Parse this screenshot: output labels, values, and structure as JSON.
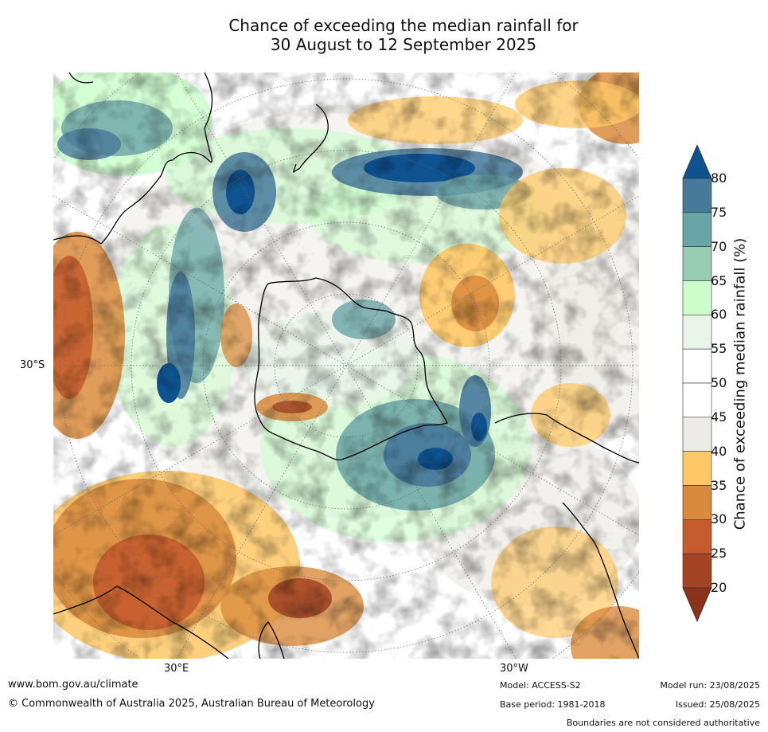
{
  "title": {
    "line1": "Chance of exceeding the median rainfall for",
    "line2": "30 August to 12 September 2025"
  },
  "map": {
    "labels": {
      "lat_30s": "30°S",
      "lon_30e": "30°E",
      "lon_30w": "30°W"
    }
  },
  "colorbar": {
    "label": "Chance of exceeding median rainfall (%)",
    "ticks": [
      "80",
      "75",
      "70",
      "65",
      "60",
      "55",
      "50",
      "45",
      "40",
      "35",
      "30",
      "25",
      "20"
    ],
    "colors_top_to_bottom": [
      "#0f5290",
      "#47799b",
      "#6aa4a6",
      "#99cdb3",
      "#ccfecc",
      "#eaf5ea",
      "#ffffff",
      "#ffffff",
      "#edebe6",
      "#fec866",
      "#d98b3d",
      "#c45c2d",
      "#a54424",
      "#8c321c"
    ]
  },
  "footer": {
    "website": "www.bom.gov.au/climate",
    "copyright": "© Commonwealth of Australia 2025, Australian Bureau of Meteorology",
    "model": "Model: ACCESS-S2",
    "base_period": "Base period: 1981-2018",
    "model_run": "Model run: 23/08/2025",
    "issued": "Issued: 25/08/2025",
    "disclaimer": "Boundaries are not considered authoritative"
  }
}
